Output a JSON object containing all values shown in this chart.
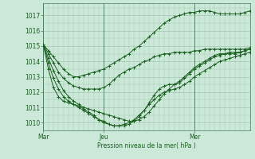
{
  "title": "Pression niveau de la mer( hPa )",
  "bg_color": "#cce8d8",
  "grid_color": "#a0c8b0",
  "line_color": "#1a6020",
  "ylim": [
    1009.5,
    1017.8
  ],
  "yticks": [
    1010,
    1011,
    1012,
    1013,
    1014,
    1015,
    1016,
    1017
  ],
  "xtick_labels": [
    "Mar",
    "Jeu",
    "Mer"
  ],
  "xtick_positions": [
    0,
    12,
    30
  ],
  "total_points": 42,
  "vline_color": "#4a7a60",
  "series": [
    [
      1015.1,
      1014.7,
      1014.3,
      1013.9,
      1013.5,
      1013.2,
      1013.0,
      1013.0,
      1013.1,
      1013.2,
      1013.3,
      1013.4,
      1013.5,
      1013.7,
      1013.9,
      1014.1,
      1014.3,
      1014.5,
      1014.8,
      1015.0,
      1015.3,
      1015.6,
      1015.9,
      1016.2,
      1016.5,
      1016.7,
      1016.9,
      1017.0,
      1017.1,
      1017.2,
      1017.2,
      1017.3,
      1017.3,
      1017.3,
      1017.2,
      1017.1,
      1017.1,
      1017.1,
      1017.1,
      1017.1,
      1017.2,
      1017.3
    ],
    [
      1015.1,
      1014.2,
      1013.4,
      1012.7,
      1012.1,
      1011.7,
      1011.4,
      1011.2,
      1011.0,
      1010.9,
      1010.8,
      1010.7,
      1010.6,
      1010.5,
      1010.4,
      1010.3,
      1010.2,
      1010.1,
      1010.1,
      1010.2,
      1010.4,
      1010.7,
      1011.1,
      1011.5,
      1011.9,
      1012.2,
      1012.5,
      1012.7,
      1013.0,
      1013.3,
      1013.6,
      1013.8,
      1014.0,
      1014.2,
      1014.4,
      1014.5,
      1014.5,
      1014.6,
      1014.6,
      1014.6,
      1014.7,
      1014.8
    ],
    [
      1015.1,
      1013.9,
      1012.9,
      1012.2,
      1011.7,
      1011.4,
      1011.2,
      1011.0,
      1010.8,
      1010.6,
      1010.4,
      1010.2,
      1010.1,
      1009.9,
      1009.8,
      1009.8,
      1009.9,
      1010.0,
      1010.2,
      1010.5,
      1010.8,
      1011.2,
      1011.5,
      1011.8,
      1012.0,
      1012.1,
      1012.2,
      1012.3,
      1012.5,
      1012.7,
      1013.0,
      1013.2,
      1013.4,
      1013.6,
      1013.8,
      1014.0,
      1014.1,
      1014.2,
      1014.3,
      1014.4,
      1014.5,
      1014.6
    ],
    [
      1015.1,
      1013.5,
      1012.3,
      1011.7,
      1011.4,
      1011.3,
      1011.2,
      1011.1,
      1010.9,
      1010.7,
      1010.5,
      1010.2,
      1010.0,
      1009.9,
      1009.8,
      1009.8,
      1009.8,
      1009.9,
      1010.1,
      1010.4,
      1010.8,
      1011.3,
      1011.8,
      1012.2,
      1012.4,
      1012.5,
      1012.5,
      1012.6,
      1012.9,
      1013.2,
      1013.5,
      1013.7,
      1013.9,
      1014.1,
      1014.3,
      1014.4,
      1014.5,
      1014.5,
      1014.5,
      1014.6,
      1014.7,
      1014.8
    ],
    [
      1015.1,
      1014.5,
      1013.9,
      1013.3,
      1012.9,
      1012.6,
      1012.4,
      1012.3,
      1012.2,
      1012.2,
      1012.2,
      1012.2,
      1012.3,
      1012.5,
      1012.8,
      1013.1,
      1013.3,
      1013.5,
      1013.6,
      1013.8,
      1014.0,
      1014.1,
      1014.3,
      1014.4,
      1014.5,
      1014.5,
      1014.6,
      1014.6,
      1014.6,
      1014.6,
      1014.7,
      1014.7,
      1014.8,
      1014.8,
      1014.8,
      1014.8,
      1014.8,
      1014.8,
      1014.8,
      1014.8,
      1014.8,
      1014.9
    ]
  ]
}
